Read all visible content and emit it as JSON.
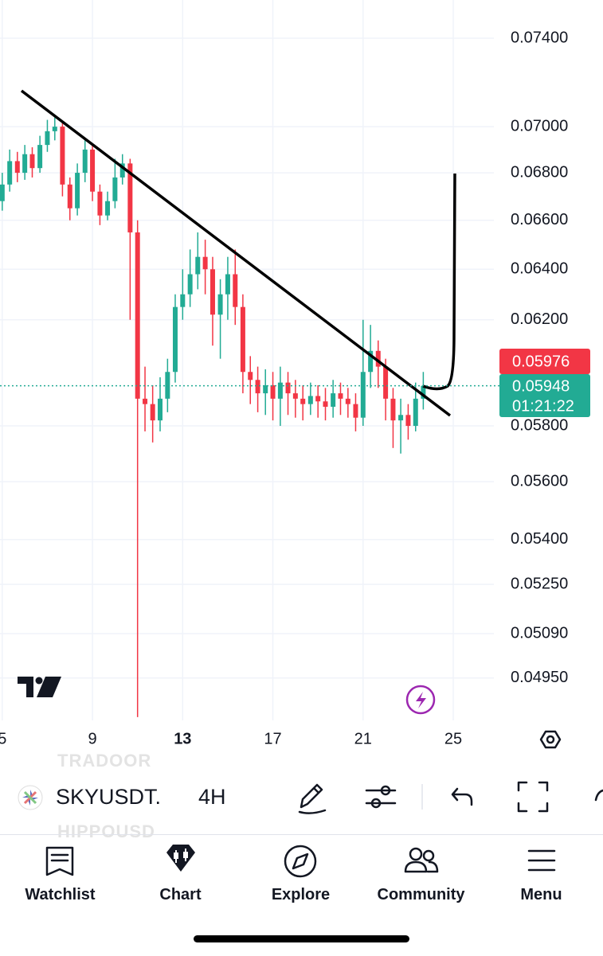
{
  "chart_data": {
    "type": "candlestick",
    "symbol": "SKYUSDT.",
    "interval": "4H",
    "log_scale": true,
    "grid": true,
    "up_color": "#22ab94",
    "down_color": "#f23645",
    "x": [
      5,
      5.33,
      5.67,
      6,
      6.33,
      6.67,
      7,
      7.33,
      7.67,
      8,
      8.33,
      8.67,
      9,
      9.33,
      9.67,
      10,
      10.33,
      10.67,
      11,
      11.33,
      11.67,
      12,
      12.33,
      12.67,
      13,
      13.33,
      13.67,
      14,
      14.33,
      14.67,
      15,
      15.33,
      15.67,
      16,
      16.33,
      16.67,
      17,
      17.33,
      17.67,
      18,
      18.33,
      18.67,
      19,
      19.33,
      19.67,
      20,
      20.33,
      20.67,
      21,
      21.33,
      21.67,
      22,
      22.33,
      22.67,
      23,
      23.33,
      23.67
    ],
    "open": [
      0.0668,
      0.0675,
      0.0685,
      0.068,
      0.0688,
      0.0682,
      0.0692,
      0.0698,
      0.07,
      0.0675,
      0.0665,
      0.068,
      0.069,
      0.0672,
      0.0662,
      0.0668,
      0.0678,
      0.0684,
      0.0655,
      0.059,
      0.0588,
      0.0582,
      0.059,
      0.06,
      0.0625,
      0.063,
      0.0638,
      0.0645,
      0.064,
      0.0622,
      0.063,
      0.0638,
      0.0625,
      0.06,
      0.0597,
      0.0592,
      0.0595,
      0.059,
      0.0596,
      0.0592,
      0.059,
      0.0588,
      0.0591,
      0.0589,
      0.0587,
      0.0592,
      0.059,
      0.0588,
      0.0583,
      0.06,
      0.0608,
      0.0602,
      0.059,
      0.0582,
      0.0584,
      0.058,
      0.059
    ],
    "high": [
      0.068,
      0.069,
      0.0689,
      0.0692,
      0.0691,
      0.0696,
      0.0703,
      0.0704,
      0.0702,
      0.0678,
      0.0684,
      0.0694,
      0.0692,
      0.0675,
      0.0672,
      0.0686,
      0.0688,
      0.0686,
      0.066,
      0.0602,
      0.0595,
      0.0598,
      0.0605,
      0.063,
      0.064,
      0.0648,
      0.0655,
      0.0652,
      0.0645,
      0.0636,
      0.0645,
      0.0648,
      0.063,
      0.0606,
      0.0602,
      0.0601,
      0.06,
      0.0602,
      0.06,
      0.0597,
      0.0595,
      0.0596,
      0.0595,
      0.0594,
      0.0597,
      0.0596,
      0.0594,
      0.0592,
      0.062,
      0.0618,
      0.0612,
      0.0605,
      0.0594,
      0.059,
      0.0588,
      0.0596,
      0.06
    ],
    "low": [
      0.0664,
      0.0672,
      0.0676,
      0.0677,
      0.0678,
      0.068,
      0.0689,
      0.0694,
      0.067,
      0.066,
      0.0662,
      0.0676,
      0.0668,
      0.0658,
      0.066,
      0.0665,
      0.0675,
      0.062,
      0.0483,
      0.0578,
      0.0574,
      0.0578,
      0.0585,
      0.0596,
      0.062,
      0.0625,
      0.0632,
      0.063,
      0.061,
      0.0605,
      0.062,
      0.0618,
      0.0592,
      0.0588,
      0.0585,
      0.0584,
      0.0582,
      0.058,
      0.0584,
      0.0583,
      0.0582,
      0.0584,
      0.0583,
      0.0582,
      0.0583,
      0.0584,
      0.0583,
      0.0578,
      0.058,
      0.0594,
      0.0594,
      0.0582,
      0.0572,
      0.057,
      0.0575,
      0.0578,
      0.0586
    ],
    "close": [
      0.0675,
      0.0685,
      0.068,
      0.0688,
      0.0682,
      0.0692,
      0.0698,
      0.07,
      0.0675,
      0.0665,
      0.068,
      0.069,
      0.0672,
      0.0662,
      0.0668,
      0.0678,
      0.0684,
      0.0655,
      0.059,
      0.0588,
      0.0582,
      0.059,
      0.06,
      0.0625,
      0.063,
      0.0638,
      0.0645,
      0.064,
      0.0622,
      0.063,
      0.0638,
      0.0625,
      0.06,
      0.0597,
      0.0592,
      0.0595,
      0.059,
      0.0596,
      0.0592,
      0.059,
      0.0588,
      0.0591,
      0.0589,
      0.0587,
      0.0592,
      0.059,
      0.0588,
      0.0583,
      0.06,
      0.0608,
      0.0602,
      0.059,
      0.0582,
      0.0584,
      0.058,
      0.059,
      0.05948
    ],
    "xlim": [
      4.9,
      26.8
    ],
    "xticks": [
      5,
      9,
      13,
      17,
      21,
      25
    ],
    "ylim": [
      0.0482,
      0.0758
    ],
    "yticks": [
      {
        "value": 0.074,
        "label": "0.07400"
      },
      {
        "value": 0.07,
        "label": "0.07000"
      },
      {
        "value": 0.068,
        "label": "0.06800"
      },
      {
        "value": 0.066,
        "label": "0.06600"
      },
      {
        "value": 0.064,
        "label": "0.06400"
      },
      {
        "value": 0.062,
        "label": "0.06200"
      },
      {
        "value": 0.058,
        "label": "0.05800"
      },
      {
        "value": 0.056,
        "label": "0.05600"
      },
      {
        "value": 0.054,
        "label": "0.05400"
      },
      {
        "value": 0.0525,
        "label": "0.05250"
      },
      {
        "value": 0.0509,
        "label": "0.05090"
      },
      {
        "value": 0.0495,
        "label": "0.04950"
      }
    ],
    "last_price": 0.05948,
    "countdown": "01:21:22",
    "marked_price": 0.05976
  },
  "symbol_picker": {
    "previous": "TRADOOR",
    "next": "HIPPOUSD"
  },
  "nav": [
    "Watchlist",
    "Chart",
    "Explore",
    "Community",
    "Menu"
  ]
}
